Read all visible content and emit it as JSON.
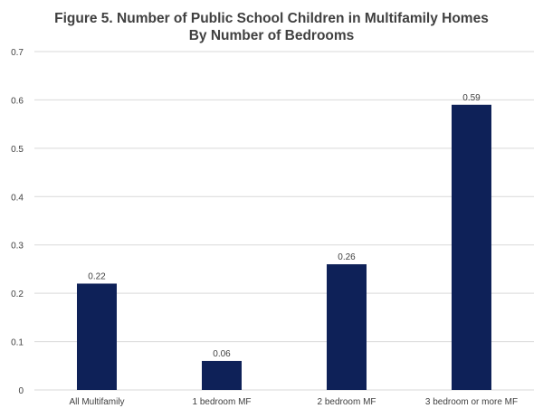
{
  "chart_data": {
    "type": "bar",
    "title_lines": [
      "Figure 5. Number of Public School Children in Multifamily Homes",
      "By Number of Bedrooms"
    ],
    "categories": [
      "All Multifamily",
      "1 bedroom MF",
      "2 bedroom MF",
      "3 bedroom or more MF"
    ],
    "values": [
      0.22,
      0.06,
      0.26,
      0.59
    ],
    "data_labels": [
      "0.22",
      "0.06",
      "0.26",
      "0.59"
    ],
    "yticks": [
      "0",
      "0.1",
      "0.2",
      "0.3",
      "0.4",
      "0.5",
      "0.6",
      "0.7"
    ],
    "ylim": [
      0,
      0.7
    ],
    "grid": true,
    "legend": "none",
    "bar_color": "#0e2158",
    "grid_color": "#d9d9d9",
    "text_color": "#404040"
  }
}
